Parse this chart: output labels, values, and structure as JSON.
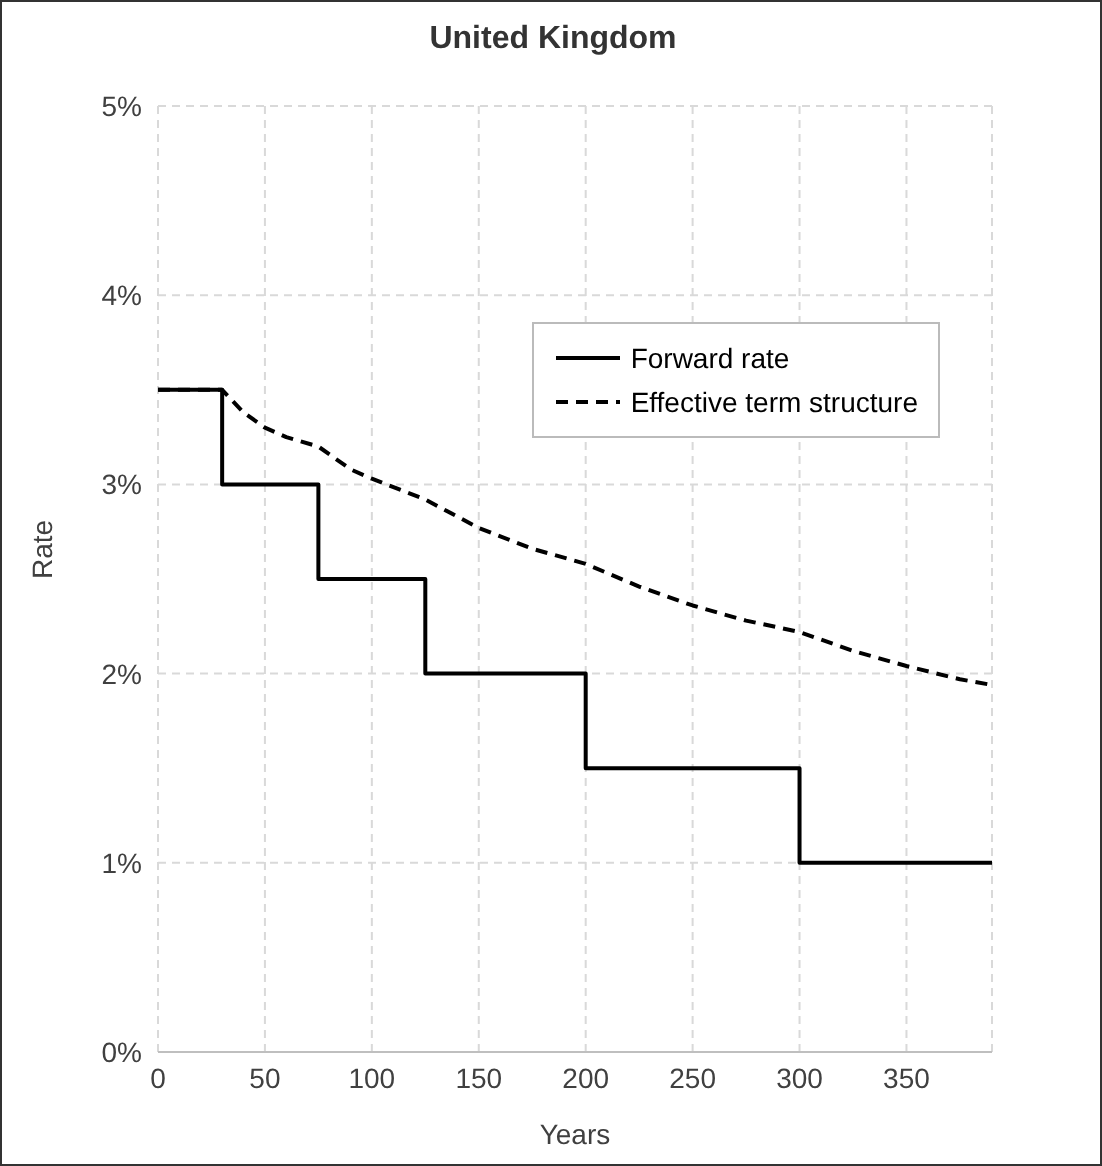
{
  "chart_data": {
    "type": "line",
    "title": "United Kingdom",
    "xlabel": "Years",
    "ylabel": "Rate",
    "xlim": [
      0,
      390
    ],
    "xticks": [
      0,
      50,
      100,
      150,
      200,
      250,
      300,
      350
    ],
    "ylim": [
      0,
      5
    ],
    "yticks": [
      {
        "value": 0,
        "label": "0%"
      },
      {
        "value": 1,
        "label": "1%"
      },
      {
        "value": 2,
        "label": "2%"
      },
      {
        "value": 3,
        "label": "3%"
      },
      {
        "value": 4,
        "label": "4%"
      },
      {
        "value": 5,
        "label": "5%"
      }
    ],
    "grid": true,
    "legend": "top right",
    "marker": "none",
    "series": [
      {
        "name": "Forward rate",
        "type": "step",
        "color": "#000000",
        "line_style": "solid",
        "x": [
          0,
          30,
          75,
          125,
          200,
          300,
          390
        ],
        "values": [
          3.5,
          3,
          2.5,
          2,
          1.5,
          1,
          1
        ]
      },
      {
        "name": "Effective term structure",
        "type": "line",
        "color": "#000000",
        "line_style": "dashed",
        "x": [
          0,
          30,
          40,
          50,
          60,
          75,
          90,
          100,
          125,
          150,
          175,
          200,
          225,
          250,
          275,
          300,
          325,
          350,
          375,
          390
        ],
        "values": [
          3.5,
          3.5,
          3.38,
          3.3,
          3.25,
          3.2,
          3.08,
          3.03,
          2.92,
          2.77,
          2.66,
          2.58,
          2.46,
          2.36,
          2.28,
          2.22,
          2.12,
          2.04,
          1.97,
          1.94
        ]
      }
    ]
  }
}
